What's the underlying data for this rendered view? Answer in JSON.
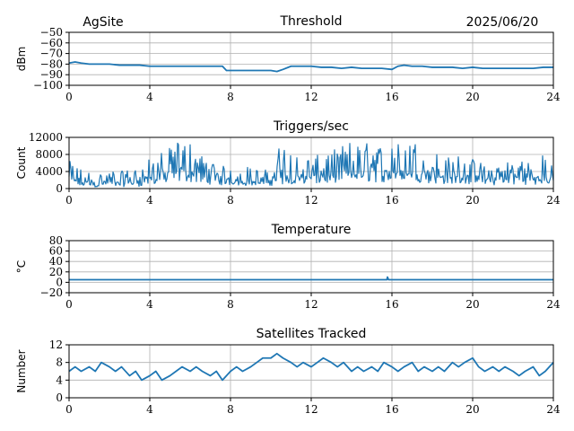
{
  "header": {
    "site": "AgSite",
    "date": "2025/06/20"
  },
  "colors": {
    "line": "#1f77b4",
    "grid": "#b0b0b0",
    "axis": "#000000"
  },
  "chart_data": [
    {
      "type": "line",
      "title": "Threshold",
      "ylabel": "dBm",
      "xlim": [
        0,
        24
      ],
      "ylim": [
        -100,
        -50
      ],
      "xticks": [
        0,
        4,
        8,
        12,
        16,
        20,
        24
      ],
      "yticks": [
        -100,
        -90,
        -80,
        -70,
        -60,
        -50
      ],
      "ytick_labels": [
        "−100",
        "−90",
        "−80",
        "−70",
        "−60",
        "−50"
      ],
      "grid": true,
      "x": [
        0,
        0.3,
        0.6,
        1,
        1.5,
        2,
        2.5,
        3,
        3.5,
        4,
        4.5,
        5,
        5.5,
        6,
        6.5,
        7,
        7.6,
        7.8,
        8,
        8.5,
        9,
        9.5,
        10,
        10.3,
        10.6,
        11,
        11.5,
        12,
        12.5,
        13,
        13.5,
        14,
        14.5,
        15,
        15.5,
        16,
        16.3,
        16.6,
        17,
        17.5,
        18,
        18.5,
        19,
        19.5,
        20,
        20.5,
        21,
        21.5,
        22,
        22.5,
        23,
        23.5,
        24
      ],
      "values": [
        -79,
        -78,
        -79,
        -80,
        -80,
        -80,
        -81,
        -81,
        -81,
        -82,
        -82,
        -82,
        -82,
        -82,
        -82,
        -82,
        -82,
        -86,
        -86,
        -86,
        -86,
        -86,
        -86,
        -87,
        -85,
        -82,
        -82,
        -82,
        -83,
        -83,
        -84,
        -83,
        -84,
        -84,
        -84,
        -85,
        -82,
        -81,
        -82,
        -82,
        -83,
        -83,
        -83,
        -84,
        -83,
        -84,
        -84,
        -84,
        -84,
        -84,
        -84,
        -83,
        -83
      ]
    },
    {
      "type": "line",
      "title": "Triggers/sec",
      "ylabel": "Count",
      "xlim": [
        0,
        24
      ],
      "ylim": [
        0,
        12000
      ],
      "xticks": [
        0,
        4,
        8,
        12,
        16,
        20,
        24
      ],
      "yticks": [
        0,
        4000,
        8000,
        12000
      ],
      "ytick_labels": [
        "0",
        "4000",
        "8000",
        "12000"
      ],
      "grid": true,
      "noise_envelope": {
        "x": [
          0,
          0.5,
          1,
          1.5,
          2,
          2.5,
          3,
          3.5,
          4,
          4.5,
          5,
          5.5,
          6,
          6.5,
          7,
          7.5,
          8,
          8.5,
          9,
          9.5,
          10,
          10.5,
          11,
          11.5,
          12,
          12.5,
          13,
          13.5,
          14,
          14.5,
          15,
          15.5,
          16,
          16.5,
          17,
          17.5,
          18,
          18.5,
          19,
          19.5,
          20,
          20.5,
          21,
          21.5,
          22,
          22.5,
          23,
          23.5,
          24
        ],
        "peak": [
          6500,
          5000,
          4000,
          3500,
          4500,
          4000,
          4500,
          5000,
          7000,
          8500,
          9500,
          11500,
          11000,
          8000,
          7000,
          5000,
          6000,
          4500,
          5500,
          4000,
          5000,
          11000,
          9000,
          7000,
          7500,
          8000,
          9000,
          10000,
          11500,
          10500,
          11000,
          10000,
          12000,
          10000,
          11500,
          10500,
          9000,
          8000,
          7000,
          8500,
          7000,
          6000,
          5500,
          7000,
          6500,
          7500,
          6000,
          8000,
          5000
        ],
        "base": [
          500,
          300,
          300,
          400,
          400,
          400,
          500,
          500,
          800,
          1000,
          1200,
          1500,
          1500,
          1200,
          1000,
          800,
          800,
          600,
          700,
          600,
          700,
          1000,
          1000,
          900,
          1000,
          1100,
          1200,
          1300,
          1500,
          1400,
          1500,
          1400,
          1600,
          1400,
          1500,
          1400,
          1200,
          1100,
          1000,
          1100,
          1000,
          900,
          800,
          900,
          900,
          1000,
          800,
          1000,
          800
        ]
      }
    },
    {
      "type": "line",
      "title": "Temperature",
      "ylabel": "°C",
      "xlim": [
        0,
        24
      ],
      "ylim": [
        -20,
        80
      ],
      "xticks": [
        0,
        4,
        8,
        12,
        16,
        20,
        24
      ],
      "yticks": [
        -20,
        0,
        20,
        40,
        60,
        80
      ],
      "ytick_labels": [
        "−20",
        "0",
        "20",
        "40",
        "60",
        "80"
      ],
      "grid": true,
      "x": [
        0,
        15.75,
        15.78,
        15.8,
        15.83,
        24
      ],
      "values": [
        5,
        5,
        10,
        8,
        5,
        5
      ]
    },
    {
      "type": "line",
      "title": "Satellites Tracked",
      "ylabel": "Number",
      "xlim": [
        0,
        24
      ],
      "ylim": [
        0,
        12
      ],
      "xticks": [
        0,
        4,
        8,
        12,
        16,
        20,
        24
      ],
      "yticks": [
        0,
        4,
        8,
        12
      ],
      "ytick_labels": [
        "0",
        "4",
        "8",
        "12"
      ],
      "grid": true,
      "x": [
        0,
        0.3,
        0.6,
        1,
        1.3,
        1.6,
        2,
        2.3,
        2.6,
        3,
        3.3,
        3.6,
        4,
        4.3,
        4.6,
        5,
        5.3,
        5.6,
        6,
        6.3,
        6.6,
        7,
        7.3,
        7.6,
        8,
        8.3,
        8.6,
        9,
        9.3,
        9.6,
        10,
        10.3,
        10.6,
        11,
        11.3,
        11.6,
        12,
        12.3,
        12.6,
        13,
        13.3,
        13.6,
        14,
        14.3,
        14.6,
        15,
        15.3,
        15.6,
        16,
        16.3,
        16.6,
        17,
        17.3,
        17.6,
        18,
        18.3,
        18.6,
        19,
        19.3,
        19.6,
        20,
        20.3,
        20.6,
        21,
        21.3,
        21.6,
        22,
        22.3,
        22.6,
        23,
        23.3,
        23.6,
        24
      ],
      "values": [
        6,
        7,
        6,
        7,
        6,
        8,
        7,
        6,
        7,
        5,
        6,
        4,
        5,
        6,
        4,
        5,
        6,
        7,
        6,
        7,
        6,
        5,
        6,
        4,
        6,
        7,
        6,
        7,
        8,
        9,
        9,
        10,
        9,
        8,
        7,
        8,
        7,
        8,
        9,
        8,
        7,
        8,
        6,
        7,
        6,
        7,
        6,
        8,
        7,
        6,
        7,
        8,
        6,
        7,
        6,
        7,
        6,
        8,
        7,
        8,
        9,
        7,
        6,
        7,
        6,
        7,
        6,
        5,
        6,
        7,
        5,
        6,
        8
      ]
    }
  ]
}
